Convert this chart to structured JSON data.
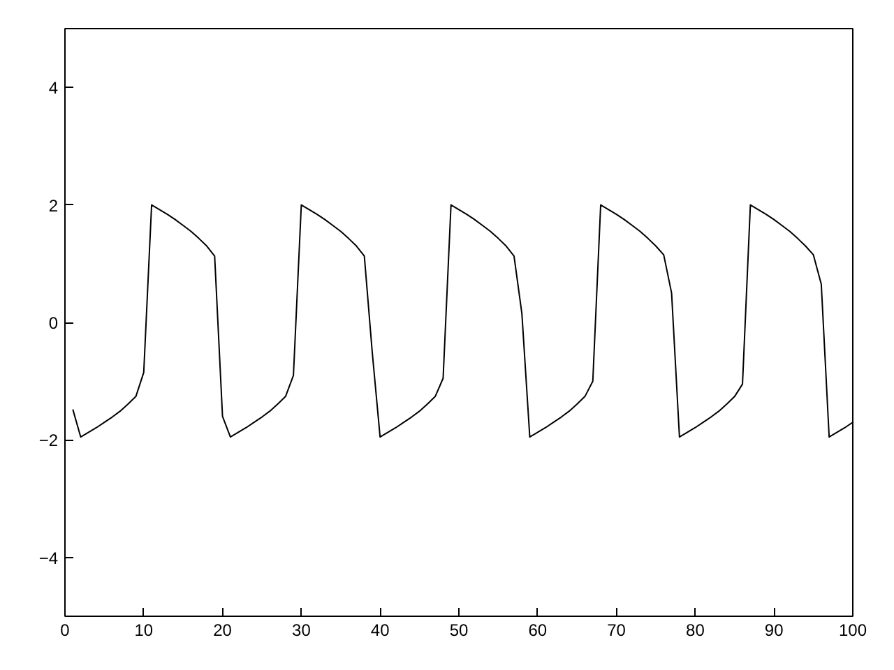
{
  "chart_data": {
    "type": "line",
    "xlim": [
      0,
      100
    ],
    "ylim": [
      -5,
      5
    ],
    "xticks": [
      0,
      10,
      20,
      30,
      40,
      50,
      60,
      70,
      80,
      90,
      100
    ],
    "yticks": [
      -4,
      -2,
      0,
      2,
      4
    ],
    "line_style": "solid",
    "series": [
      {
        "color": "#000000",
        "x": [
          1,
          2,
          3,
          4,
          5,
          6,
          7,
          8,
          9,
          10,
          11,
          12,
          13,
          14,
          15,
          16,
          17,
          18,
          19,
          20,
          21,
          22,
          23,
          24,
          25,
          26,
          27,
          28,
          29,
          30,
          31,
          32,
          33,
          34,
          35,
          36,
          37,
          38,
          39,
          40,
          41,
          42,
          43,
          44,
          45,
          46,
          47,
          48,
          49,
          50,
          51,
          52,
          53,
          54,
          55,
          56,
          57,
          58,
          59,
          60,
          61,
          62,
          63,
          64,
          65,
          66,
          67,
          68,
          69,
          70,
          71,
          72,
          73,
          74,
          75,
          76,
          77,
          78,
          79,
          80,
          81,
          82,
          83,
          84,
          85,
          86,
          87,
          88,
          89,
          90,
          91,
          92,
          93,
          94,
          95,
          96,
          97,
          98,
          99,
          100
        ],
        "values": [
          -1.48,
          -1.95,
          -1.87,
          -1.79,
          -1.7,
          -1.61,
          -1.51,
          -1.39,
          -1.26,
          -0.85,
          2.0,
          1.92,
          1.84,
          1.75,
          1.65,
          1.55,
          1.43,
          1.3,
          1.13,
          -1.6,
          -1.95,
          -1.87,
          -1.79,
          -1.7,
          -1.61,
          -1.51,
          -1.39,
          -1.26,
          -0.9,
          2.0,
          1.92,
          1.84,
          1.75,
          1.65,
          1.55,
          1.43,
          1.3,
          1.13,
          -0.5,
          -1.95,
          -1.87,
          -1.79,
          -1.7,
          -1.61,
          -1.51,
          -1.39,
          -1.26,
          -0.95,
          2.0,
          1.92,
          1.84,
          1.75,
          1.65,
          1.55,
          1.43,
          1.3,
          1.13,
          0.15,
          -1.95,
          -1.87,
          -1.79,
          -1.7,
          -1.61,
          -1.51,
          -1.39,
          -1.26,
          -1.0,
          2.0,
          1.92,
          1.84,
          1.75,
          1.65,
          1.55,
          1.43,
          1.3,
          1.15,
          0.5,
          -1.95,
          -1.87,
          -1.79,
          -1.7,
          -1.61,
          -1.51,
          -1.39,
          -1.26,
          -1.05,
          2.0,
          1.92,
          1.84,
          1.75,
          1.65,
          1.55,
          1.43,
          1.3,
          1.15,
          0.65,
          -1.95,
          -1.87,
          -1.79,
          -1.7
        ]
      }
    ]
  }
}
